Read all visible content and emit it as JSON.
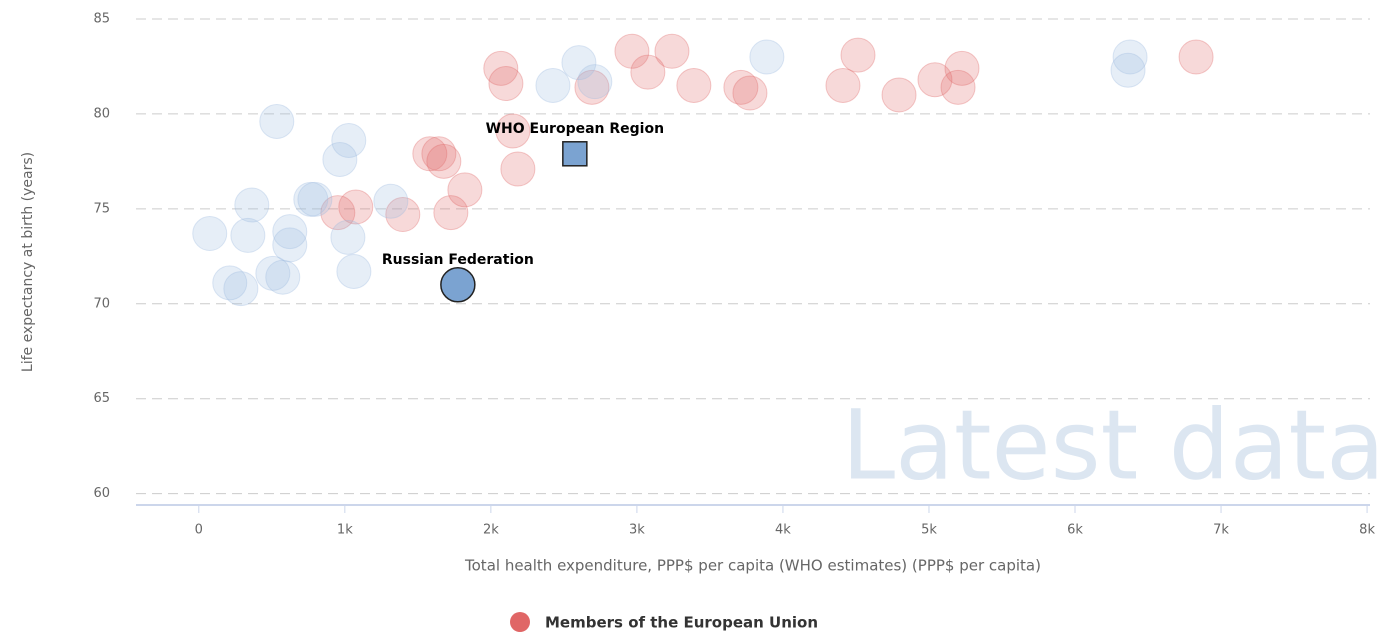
{
  "chart_data": {
    "type": "scatter",
    "x_label": "Total health expenditure, PPP$ per capita (WHO estimates) (PPP$ per capita)",
    "y_label": "Life expectancy at birth (years)",
    "watermark": "Latest data",
    "xlim": [
      -430,
      8020
    ],
    "ylim": [
      59.4,
      85
    ],
    "xticks": [
      0,
      {
        "value": 1000,
        "label": "1k"
      },
      {
        "value": 2000,
        "label": "2k"
      },
      {
        "value": 3000,
        "label": "3k"
      },
      {
        "value": 4000,
        "label": "4k"
      },
      {
        "value": 5000,
        "label": "5k"
      },
      {
        "value": 6000,
        "label": "6k"
      },
      {
        "value": 7000,
        "label": "7k"
      },
      {
        "value": 8000,
        "label": "8k"
      }
    ],
    "yticks": [
      60,
      65,
      70,
      75,
      80,
      85
    ],
    "grid": true,
    "series": [
      {
        "name": "Members of the European Union",
        "color": "#e06666",
        "x": [
          2068,
          2103,
          2966,
          3075,
          3240,
          3390,
          2692,
          3712,
          3774,
          4411,
          4514,
          4795,
          5041,
          5226,
          5199,
          6829,
          2151,
          2185,
          1582,
          1644,
          1678,
          1822,
          1726,
          1397,
          1075,
          952
        ],
        "values": [
          82.4,
          81.6,
          83.3,
          82.2,
          83.3,
          81.5,
          81.4,
          81.4,
          81.1,
          81.5,
          83.1,
          81.0,
          81.8,
          82.4,
          81.4,
          83.0,
          79.1,
          77.1,
          77.9,
          77.9,
          77.5,
          76.0,
          74.8,
          74.7,
          75.1,
          74.8
        ]
      },
      {
        "color": "#9dbbe0",
        "x": [
          534,
          1027,
          966,
          767,
          795,
          1315,
          363,
          75,
          336,
          623,
          623,
          1021,
          1062,
          507,
          575,
          212,
          288,
          2425,
          2603,
          2712,
          3890,
          6377,
          6363
        ],
        "values": [
          79.6,
          78.6,
          77.6,
          75.5,
          75.5,
          75.4,
          75.2,
          73.7,
          73.6,
          73.8,
          73.1,
          73.5,
          71.7,
          71.6,
          71.4,
          71.1,
          70.8,
          81.5,
          82.7,
          81.7,
          83.0,
          83.0,
          82.3
        ]
      }
    ],
    "highlights": [
      {
        "label": "Russian Federation",
        "x": 1774,
        "y": 71.0,
        "shape": "circle"
      },
      {
        "label": "WHO European Region",
        "x": 2575,
        "y": 77.9,
        "shape": "square"
      }
    ]
  }
}
